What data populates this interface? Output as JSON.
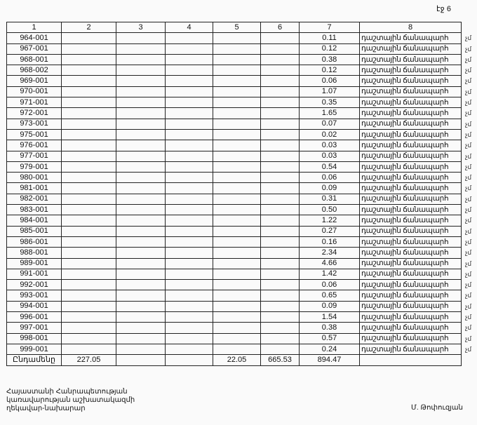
{
  "page_label": "էջ 6",
  "table": {
    "headers": [
      "1",
      "2",
      "3",
      "4",
      "5",
      "6",
      "7",
      "8"
    ],
    "suffix": "չմ",
    "rows": [
      {
        "code": "964-001",
        "value": "0.11",
        "type": "դաշտային ճանապարհ"
      },
      {
        "code": "967-001",
        "value": "0.12",
        "type": "դաշտային ճանապարհ"
      },
      {
        "code": "968-001",
        "value": "0.38",
        "type": "դաշտային ճանապարհ"
      },
      {
        "code": "968-002",
        "value": "0.12",
        "type": "դաշտային ճանապարհ"
      },
      {
        "code": "969-001",
        "value": "0.06",
        "type": "դաշտային ճանապարհ"
      },
      {
        "code": "970-001",
        "value": "1.07",
        "type": "դաշտային ճանապարհ"
      },
      {
        "code": "971-001",
        "value": "0.35",
        "type": "դաշտային ճանապարհ"
      },
      {
        "code": "972-001",
        "value": "1.65",
        "type": "դաշտային ճանապարհ"
      },
      {
        "code": "973-001",
        "value": "0.07",
        "type": "դաշտային ճանապարհ"
      },
      {
        "code": "975-001",
        "value": "0.02",
        "type": "դաշտային ճանապարհ"
      },
      {
        "code": "976-001",
        "value": "0.03",
        "type": "դաշտային ճանապարհ"
      },
      {
        "code": "977-001",
        "value": "0.03",
        "type": "դաշտային ճանապարհ"
      },
      {
        "code": "979-001",
        "value": "0.54",
        "type": "դաշտային ճանապարհ"
      },
      {
        "code": "980-001",
        "value": "0.06",
        "type": "դաշտային ճանապարհ"
      },
      {
        "code": "981-001",
        "value": "0.09",
        "type": "դաշտային ճանապարհ"
      },
      {
        "code": "982-001",
        "value": "0.31",
        "type": "դաշտային ճանապարհ"
      },
      {
        "code": "983-001",
        "value": "0.50",
        "type": "դաշտային ճանապարհ"
      },
      {
        "code": "984-001",
        "value": "1.22",
        "type": "դաշտային ճանապարհ"
      },
      {
        "code": "985-001",
        "value": "0.27",
        "type": "դաշտային ճանապարհ"
      },
      {
        "code": "986-001",
        "value": "0.16",
        "type": "դաշտային ճանապարհ"
      },
      {
        "code": "988-001",
        "value": "2.34",
        "type": "դաշտային ճանապարհ"
      },
      {
        "code": "989-001",
        "value": "4.66",
        "type": "դաշտային ճանապարհ"
      },
      {
        "code": "991-001",
        "value": "1.42",
        "type": "դաշտային ճանապարհ"
      },
      {
        "code": "992-001",
        "value": "0.06",
        "type": "դաշտային ճանապարհ"
      },
      {
        "code": "993-001",
        "value": "0.65",
        "type": "դաշտային ճանապարհ"
      },
      {
        "code": "994-001",
        "value": "0.09",
        "type": "դաշտային ճանապարհ"
      },
      {
        "code": "996-001",
        "value": "1.54",
        "type": "դաշտային ճանապարհ"
      },
      {
        "code": "997-001",
        "value": "0.38",
        "type": "դաշտային ճանապարհ"
      },
      {
        "code": "998-001",
        "value": "0.57",
        "type": "դաշտային ճանապարհ"
      },
      {
        "code": "999-001",
        "value": "0.24",
        "type": "դաշտային ճանապարհ"
      }
    ],
    "total": {
      "label": "Ընդամենը",
      "c2": "227.05",
      "c3": "",
      "c4": "",
      "c5": "22.05",
      "c6": "665.53",
      "c7": "894.47",
      "c8": ""
    }
  },
  "footer": {
    "line1": "Հայաստանի Հանրապետության",
    "line2": "կառավարության աշխատակազմի",
    "line3": "ղեկավար-նախարար",
    "signer": "Մ. Թոփուզյան"
  }
}
